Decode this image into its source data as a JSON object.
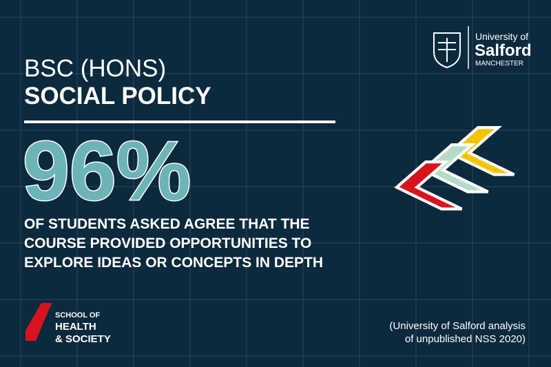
{
  "header": {
    "degree": "BSC (HONS)",
    "course": "SOCIAL POLICY"
  },
  "stat": {
    "figure": "96%",
    "lines": [
      "OF STUDENTS ASKED AGREE THAT THE",
      "COURSE PROVIDED OPPORTUNITIES TO",
      "EXPLORE IDEAS OR CONCEPTS IN DEPTH"
    ]
  },
  "school": {
    "lines": [
      "SCHOOL OF",
      "HEALTH",
      "& SOCIETY"
    ]
  },
  "source": {
    "lines": [
      "(University of Salford analysis",
      "of unpublished NSS 2020)"
    ]
  },
  "logo": {
    "top": "University of",
    "name": "Salford",
    "city": "MANCHESTER"
  }
}
